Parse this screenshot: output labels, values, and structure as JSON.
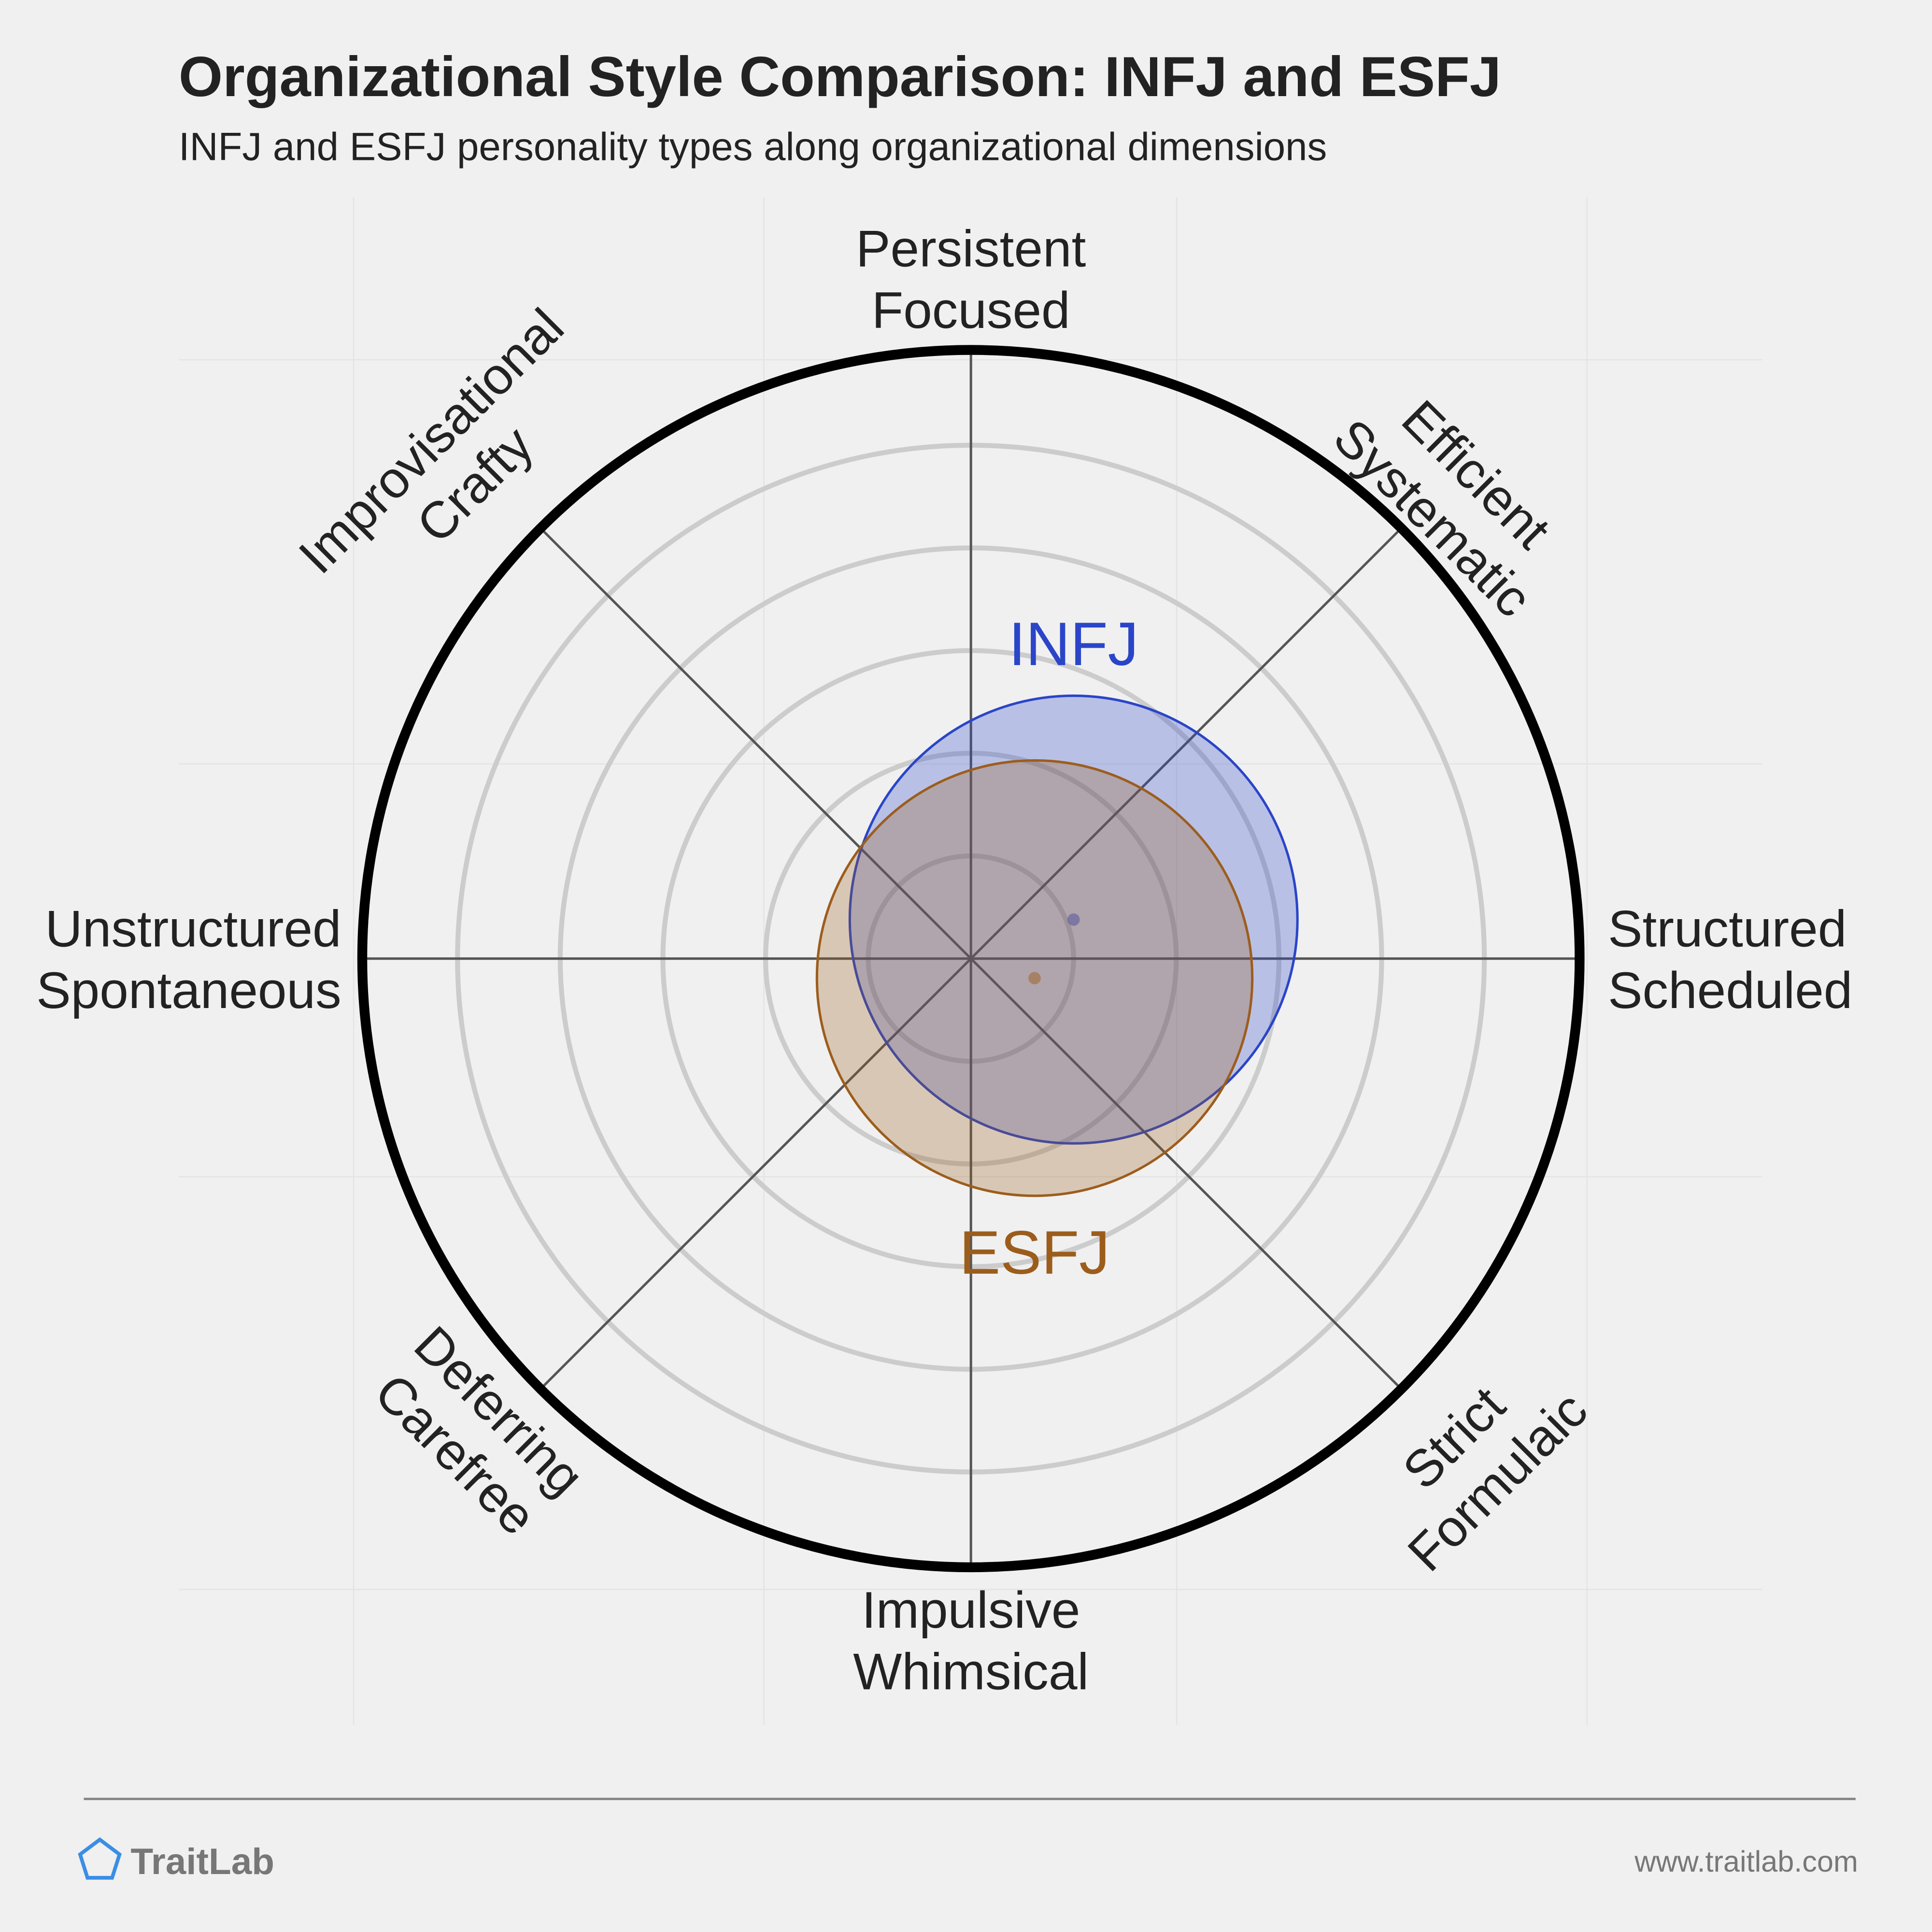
{
  "chart_data": {
    "type": "circle-plot",
    "title": "Organizational Style Comparison: INFJ and ESFJ",
    "subtitle": "INFJ and ESFJ personality types along organizational dimensions",
    "axes": [
      [
        "Persistent",
        "Focused"
      ],
      [
        "Efficient",
        "Systematic"
      ],
      [
        "Structured",
        "Scheduled"
      ],
      [
        "Strict",
        "Formulaic"
      ],
      [
        "Impulsive",
        "Whimsical"
      ],
      [
        "Deferring",
        "Carefree"
      ],
      [
        "Unstructured",
        "Spontaneous"
      ],
      [
        "Improvisational",
        "Crafty"
      ]
    ],
    "rlim": [
      0,
      6
    ],
    "rticks": [
      1,
      2,
      3,
      4,
      5
    ],
    "series": [
      {
        "name": "INFJ",
        "color": "#2a45c8",
        "x": 1.0,
        "y": 0.38,
        "r": 2.18
      },
      {
        "name": "ESFJ",
        "color": "#9c5d1c",
        "x": 0.62,
        "y": -0.19,
        "r": 2.12
      }
    ],
    "footer": {
      "brand": "TraitLab",
      "url": "www.traitlab.com"
    }
  }
}
